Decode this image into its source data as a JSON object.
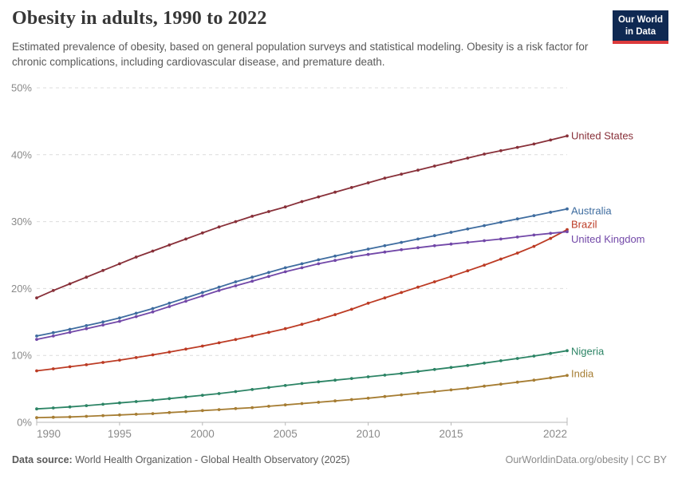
{
  "header": {
    "title": "Obesity in adults, 1990 to 2022",
    "subtitle": "Estimated prevalence of obesity, based on general population surveys and statistical modeling. Obesity is a risk factor for chronic complications, including cardiovascular disease, and premature death.",
    "logo": {
      "line1": "Our World",
      "line2": "in Data",
      "bg_color": "#0F2952",
      "accent_color": "#DC3A3C"
    }
  },
  "footer": {
    "datasource_label": "Data source:",
    "datasource_text": " World Health Organization - Global Health Observatory (2025)",
    "link_text": "OurWorldinData.org/obesity | CC BY"
  },
  "styles": {
    "grid_color": "#DCDCDC",
    "axis_color": "#B8B8B8",
    "tick_label_color": "#8A8A8A",
    "title_color": "#373737",
    "subtitle_color": "#595959"
  },
  "chart_data": {
    "type": "line",
    "title": "Obesity in adults, 1990 to 2022",
    "xlabel": "",
    "ylabel": "",
    "ylim": [
      0,
      50
    ],
    "yticks": [
      0,
      10,
      20,
      30,
      40,
      50
    ],
    "ytick_suffix": "%",
    "xticks": [
      1990,
      1995,
      2000,
      2005,
      2010,
      2015,
      2022
    ],
    "grid": "horizontal-dashed",
    "legend_position": "line-end-labels",
    "markers": true,
    "x": [
      1990,
      1991,
      1992,
      1993,
      1994,
      1995,
      1996,
      1997,
      1998,
      1999,
      2000,
      2001,
      2002,
      2003,
      2004,
      2005,
      2006,
      2007,
      2008,
      2009,
      2010,
      2011,
      2012,
      2013,
      2014,
      2015,
      2016,
      2017,
      2018,
      2019,
      2020,
      2021,
      2022
    ],
    "series": [
      {
        "name": "United States",
        "color": "#883039",
        "label_dy": 0,
        "values": [
          18.6,
          19.7,
          20.7,
          21.7,
          22.7,
          23.7,
          24.7,
          25.6,
          26.5,
          27.4,
          28.3,
          29.2,
          30.0,
          30.8,
          31.5,
          32.2,
          33.0,
          33.7,
          34.4,
          35.1,
          35.8,
          36.5,
          37.1,
          37.7,
          38.3,
          38.9,
          39.5,
          40.1,
          40.6,
          41.1,
          41.6,
          42.2,
          42.8
        ]
      },
      {
        "name": "Australia",
        "color": "#3E6C9F",
        "label_dy": 3,
        "values": [
          12.9,
          13.4,
          13.9,
          14.45,
          15.0,
          15.6,
          16.3,
          17.0,
          17.8,
          18.6,
          19.4,
          20.2,
          21.0,
          21.7,
          22.4,
          23.1,
          23.7,
          24.3,
          24.85,
          25.4,
          25.9,
          26.4,
          26.9,
          27.4,
          27.9,
          28.4,
          28.9,
          29.4,
          29.9,
          30.4,
          30.9,
          31.4,
          31.9
        ]
      },
      {
        "name": "Brazil",
        "color": "#BC3B24",
        "label_dy": -6,
        "values": [
          7.7,
          8.0,
          8.3,
          8.6,
          8.95,
          9.3,
          9.68,
          10.08,
          10.5,
          10.94,
          11.4,
          11.88,
          12.38,
          12.9,
          13.44,
          14.0,
          14.65,
          15.35,
          16.1,
          16.9,
          17.8,
          18.6,
          19.4,
          20.2,
          21.0,
          21.8,
          22.65,
          23.5,
          24.4,
          25.3,
          26.3,
          27.5,
          28.8
        ]
      },
      {
        "name": "United Kingdom",
        "color": "#7248A8",
        "label_dy": 10,
        "values": [
          12.4,
          12.9,
          13.45,
          14.0,
          14.55,
          15.1,
          15.8,
          16.5,
          17.3,
          18.1,
          18.9,
          19.7,
          20.4,
          21.1,
          21.8,
          22.5,
          23.1,
          23.7,
          24.2,
          24.7,
          25.1,
          25.45,
          25.8,
          26.1,
          26.4,
          26.65,
          26.9,
          27.15,
          27.4,
          27.7,
          28.0,
          28.25,
          28.5
        ]
      },
      {
        "name": "Nigeria",
        "color": "#2C8465",
        "label_dy": 1,
        "values": [
          2.0,
          2.15,
          2.3,
          2.5,
          2.7,
          2.9,
          3.1,
          3.3,
          3.55,
          3.8,
          4.05,
          4.3,
          4.6,
          4.9,
          5.2,
          5.5,
          5.8,
          6.05,
          6.3,
          6.55,
          6.8,
          7.05,
          7.3,
          7.6,
          7.9,
          8.2,
          8.5,
          8.85,
          9.2,
          9.55,
          9.9,
          10.3,
          10.7
        ]
      },
      {
        "name": "India",
        "color": "#A67D33",
        "label_dy": -2,
        "values": [
          0.7,
          0.75,
          0.8,
          0.9,
          1.0,
          1.1,
          1.2,
          1.3,
          1.45,
          1.6,
          1.75,
          1.9,
          2.05,
          2.2,
          2.4,
          2.6,
          2.8,
          3.0,
          3.2,
          3.4,
          3.6,
          3.85,
          4.1,
          4.35,
          4.6,
          4.85,
          5.1,
          5.4,
          5.7,
          6.0,
          6.3,
          6.65,
          7.0
        ]
      }
    ]
  }
}
